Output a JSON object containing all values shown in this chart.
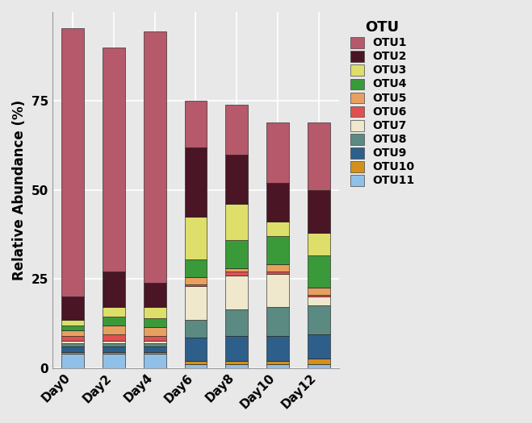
{
  "categories": [
    "Day0",
    "Day2",
    "Day4",
    "Day6",
    "Day8",
    "Day10",
    "Day12"
  ],
  "otu_labels": [
    "OTU1",
    "OTU2",
    "OTU3",
    "OTU4",
    "OTU5",
    "OTU6",
    "OTU7",
    "OTU8",
    "OTU9",
    "OTU10",
    "OTU11"
  ],
  "otu_colors": [
    "#b5596b",
    "#4a1525",
    "#dede6a",
    "#3a9a3a",
    "#e8a060",
    "#e05050",
    "#f0e8cc",
    "#5a8a82",
    "#2e5f8a",
    "#d4901a",
    "#90c0e8"
  ],
  "data": {
    "OTU11": [
      4.0,
      4.0,
      4.0,
      1.0,
      1.0,
      1.0,
      1.0
    ],
    "OTU10": [
      0.5,
      0.5,
      0.5,
      1.0,
      1.0,
      1.0,
      1.5
    ],
    "OTU9": [
      1.5,
      1.5,
      1.5,
      6.5,
      7.0,
      7.0,
      7.0
    ],
    "OTU8": [
      1.0,
      1.0,
      1.0,
      5.0,
      7.5,
      8.0,
      8.0
    ],
    "OTU7": [
      0.5,
      0.5,
      0.5,
      9.5,
      9.5,
      9.5,
      2.5
    ],
    "OTU6": [
      1.5,
      2.0,
      1.5,
      0.5,
      1.0,
      0.5,
      0.5
    ],
    "OTU5": [
      1.5,
      2.5,
      2.5,
      2.0,
      1.0,
      2.0,
      2.0
    ],
    "OTU4": [
      1.5,
      2.5,
      2.5,
      5.0,
      8.0,
      8.0,
      9.0
    ],
    "OTU3": [
      1.5,
      2.5,
      3.0,
      12.0,
      10.0,
      4.0,
      6.5
    ],
    "OTU2": [
      6.5,
      10.0,
      7.0,
      19.5,
      14.0,
      11.0,
      12.0
    ],
    "OTU1": [
      75.5,
      63.0,
      70.5,
      13.0,
      14.0,
      17.0,
      19.0
    ]
  },
  "ylabel": "Relative Abundance (%)",
  "legend_title": "OTU",
  "ylim": [
    0,
    100
  ],
  "yticks": [
    0,
    25,
    50,
    75
  ],
  "background_color": "#e8e8e8",
  "bar_edge_color": "#111111",
  "bar_width": 0.55
}
